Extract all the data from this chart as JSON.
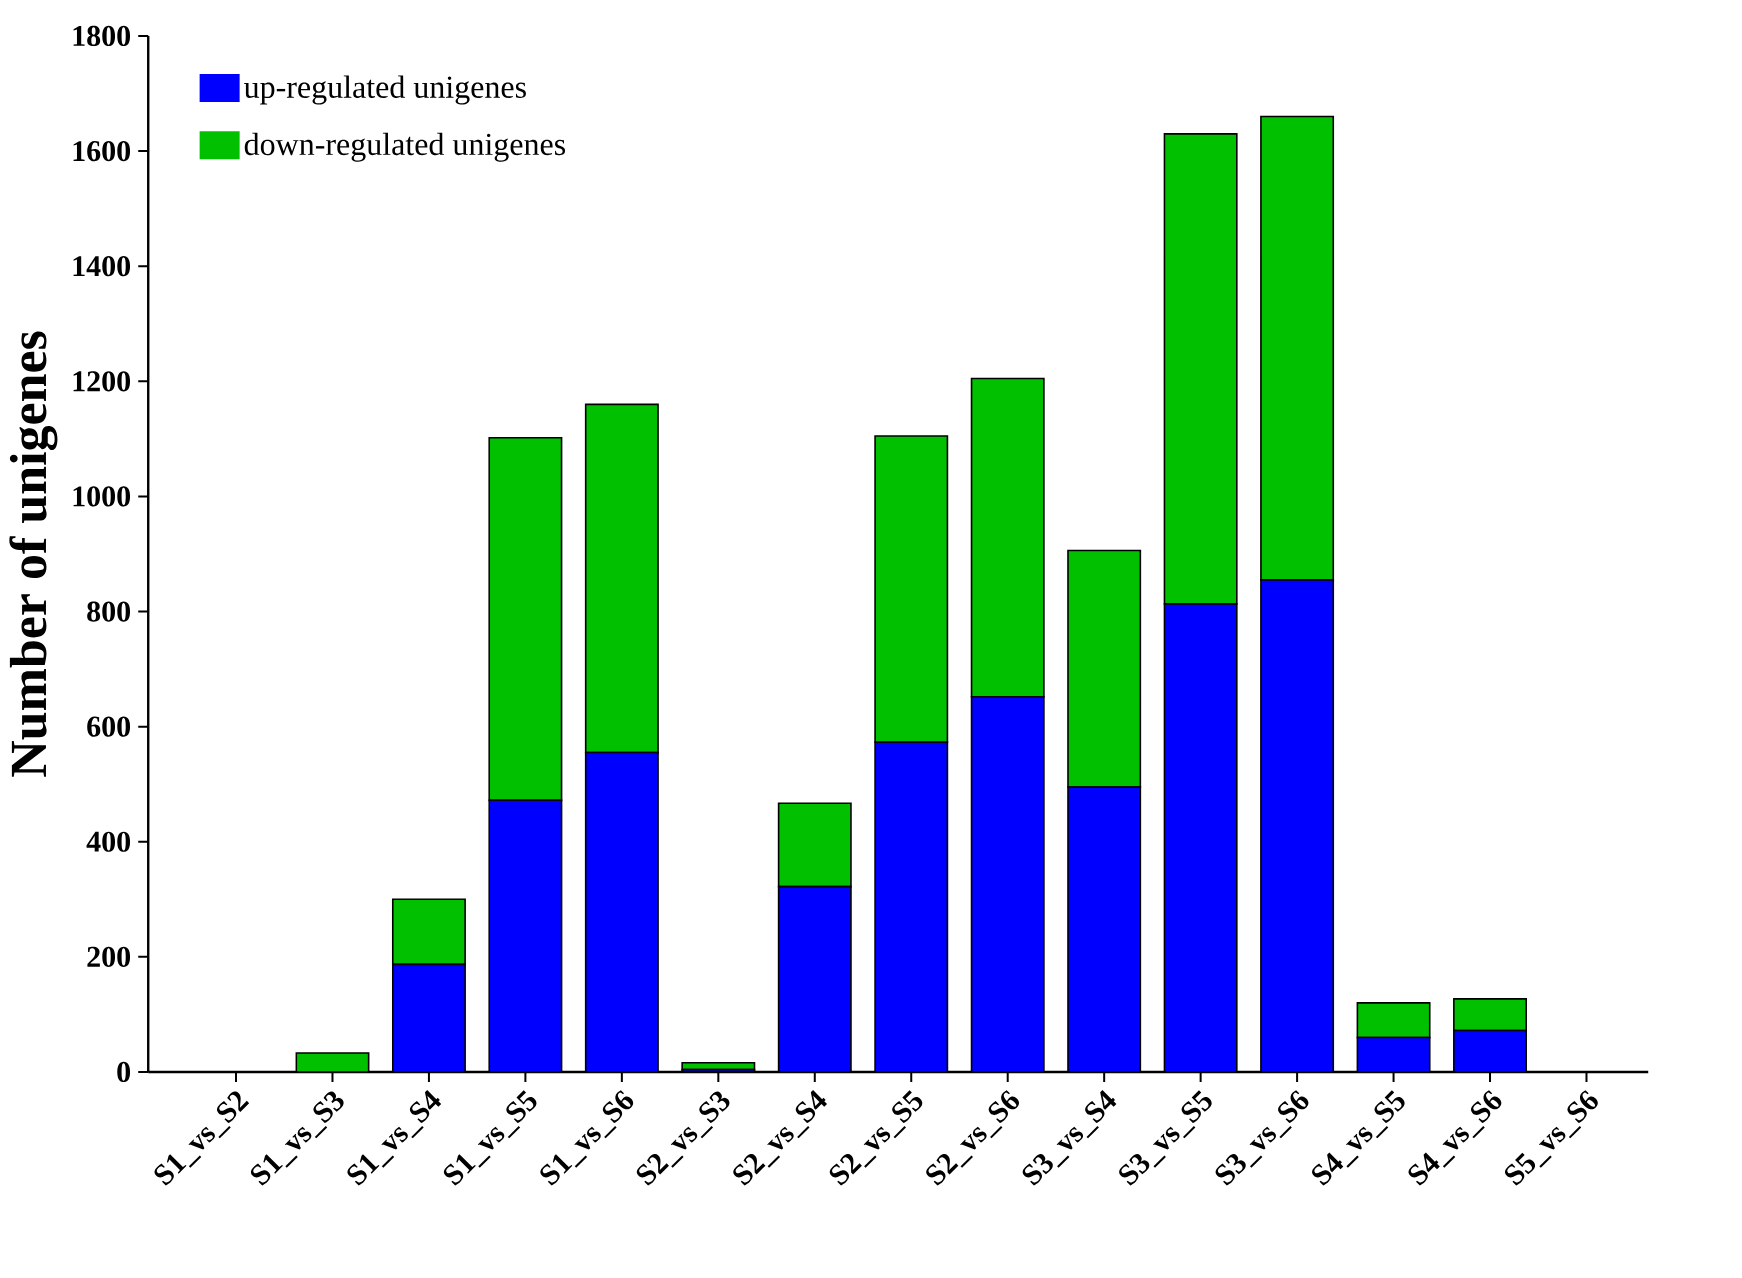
{
  "chart_data": {
    "type": "bar",
    "stacked": true,
    "ylabel": "Number of unigenes",
    "categories": [
      "S1_vs_S2",
      "S1_vs_S3",
      "S1_vs_S4",
      "S1_vs_S5",
      "S1_vs_S6",
      "S2_vs_S3",
      "S2_vs_S4",
      "S2_vs_S5",
      "S2_vs_S6",
      "S3_vs_S4",
      "S3_vs_S5",
      "S3_vs_S6",
      "S4_vs_S5",
      "S4_vs_S6",
      "S5_vs_S6"
    ],
    "series": [
      {
        "name": "up-regulated unigenes",
        "color": "#0000ff",
        "values": [
          0,
          0,
          187,
          472,
          555,
          4,
          322,
          573,
          652,
          495,
          813,
          855,
          60,
          72,
          0
        ]
      },
      {
        "name": "down-regulated unigenes",
        "color": "#00c000",
        "values": [
          0,
          33,
          113,
          630,
          605,
          12,
          145,
          532,
          553,
          411,
          817,
          805,
          60,
          55,
          0
        ]
      }
    ],
    "ylim": [
      0,
      1800
    ],
    "yticks": [
      0,
      200,
      400,
      600,
      800,
      1000,
      1200,
      1400,
      1600,
      1800
    ],
    "legend": "top left",
    "grid": false
  }
}
